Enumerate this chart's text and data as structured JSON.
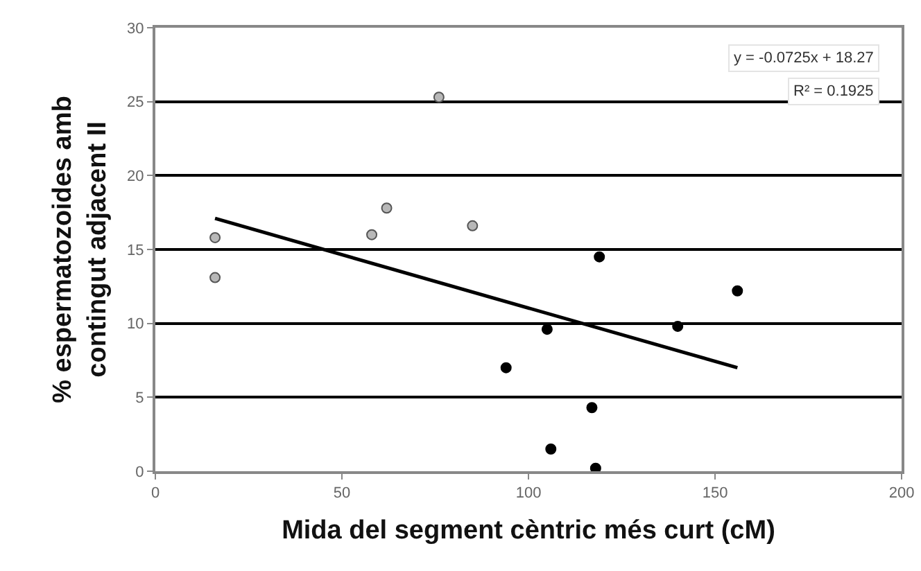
{
  "chart_data": {
    "type": "scatter",
    "xlabel": "Mida del segment cèntric més curt (cM)",
    "ylabel": "% espermatozoides amb\ncontingut adjacent II",
    "xlim": [
      0,
      200
    ],
    "xticks": [
      0,
      50,
      100,
      150,
      200
    ],
    "ylim": [
      0,
      30
    ],
    "yticks": [
      0,
      5,
      10,
      15,
      20,
      25,
      30
    ],
    "grid": "y",
    "marker": "circle",
    "annotations": [
      "y = -0.0725x + 18.27",
      "R² = 0.1925"
    ],
    "series": [
      {
        "color": "#b8b8b8",
        "x": [
          16,
          16,
          58,
          62,
          76,
          85
        ],
        "values": [
          15.8,
          13.1,
          16,
          17.8,
          25.3,
          16.6
        ]
      },
      {
        "color": "#000000",
        "x": [
          94,
          105,
          106,
          117,
          118,
          119,
          140,
          156
        ],
        "values": [
          7,
          9.6,
          1.5,
          4.3,
          0.2,
          14.5,
          9.8,
          12.2
        ]
      },
      {
        "type": "line",
        "color": "#000000",
        "marker": "none",
        "line_style": "solid",
        "x": [
          16,
          156
        ],
        "values": [
          17.1,
          7.0
        ]
      }
    ]
  }
}
